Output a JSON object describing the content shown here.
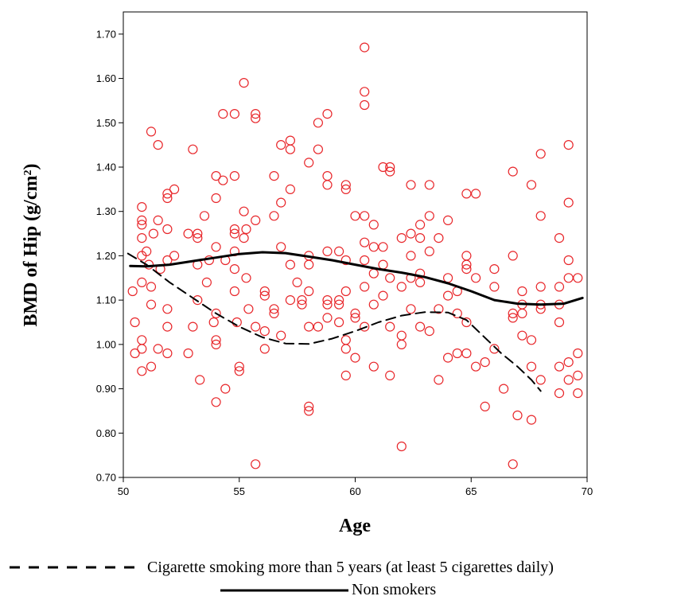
{
  "chart_data": {
    "type": "scatter",
    "xlabel": "Age",
    "ylabel_main": "BMD of Hip (g/cm",
    "ylabel_sup": "2",
    "ylabel_close": ")",
    "xlim": [
      50,
      70
    ],
    "ylim": [
      0.7,
      1.75
    ],
    "x_ticks": [
      50,
      55,
      60,
      65,
      70
    ],
    "x_tick_labels": [
      "50",
      "55",
      "60",
      "65",
      "70"
    ],
    "y_ticks": [
      0.7,
      0.8,
      0.9,
      1.0,
      1.1,
      1.2,
      1.3,
      1.4,
      1.5,
      1.6,
      1.7
    ],
    "y_tick_labels": [
      "0.70",
      "0.80",
      "0.90",
      "1.00",
      "1.10",
      "1.20",
      "1.30",
      "1.40",
      "1.50",
      "1.60",
      "1.70"
    ],
    "grid": false,
    "marker_color": "#e8262a",
    "line_color": "#000000",
    "points": [
      [
        50.4,
        1.12
      ],
      [
        50.5,
        1.05
      ],
      [
        50.5,
        0.98
      ],
      [
        50.8,
        1.31
      ],
      [
        50.8,
        1.28
      ],
      [
        50.8,
        1.27
      ],
      [
        50.8,
        1.24
      ],
      [
        50.8,
        1.2
      ],
      [
        50.8,
        1.14
      ],
      [
        50.8,
        1.01
      ],
      [
        50.8,
        0.99
      ],
      [
        50.8,
        0.94
      ],
      [
        51.0,
        1.21
      ],
      [
        51.1,
        1.18
      ],
      [
        51.2,
        1.48
      ],
      [
        51.2,
        1.13
      ],
      [
        51.2,
        1.09
      ],
      [
        51.2,
        0.95
      ],
      [
        51.3,
        1.25
      ],
      [
        51.5,
        1.45
      ],
      [
        51.5,
        1.28
      ],
      [
        51.5,
        0.99
      ],
      [
        51.6,
        1.17
      ],
      [
        51.9,
        1.34
      ],
      [
        51.9,
        1.33
      ],
      [
        51.9,
        1.26
      ],
      [
        51.9,
        1.19
      ],
      [
        51.9,
        1.08
      ],
      [
        51.9,
        1.04
      ],
      [
        51.9,
        0.98
      ],
      [
        52.2,
        1.35
      ],
      [
        52.2,
        1.2
      ],
      [
        52.8,
        1.25
      ],
      [
        52.8,
        0.98
      ],
      [
        53.0,
        1.44
      ],
      [
        53.0,
        1.04
      ],
      [
        53.2,
        1.25
      ],
      [
        53.2,
        1.24
      ],
      [
        53.2,
        1.18
      ],
      [
        53.2,
        1.1
      ],
      [
        53.3,
        0.92
      ],
      [
        53.5,
        1.29
      ],
      [
        53.6,
        1.14
      ],
      [
        53.7,
        1.19
      ],
      [
        53.9,
        1.05
      ],
      [
        54.0,
        1.38
      ],
      [
        54.0,
        1.33
      ],
      [
        54.0,
        1.22
      ],
      [
        54.0,
        1.07
      ],
      [
        54.0,
        1.01
      ],
      [
        54.0,
        1.0
      ],
      [
        54.0,
        0.87
      ],
      [
        54.3,
        1.52
      ],
      [
        54.3,
        1.37
      ],
      [
        54.4,
        1.19
      ],
      [
        54.4,
        0.9
      ],
      [
        54.8,
        1.52
      ],
      [
        54.8,
        1.38
      ],
      [
        54.8,
        1.26
      ],
      [
        54.8,
        1.25
      ],
      [
        54.8,
        1.21
      ],
      [
        54.8,
        1.17
      ],
      [
        54.8,
        1.12
      ],
      [
        54.9,
        1.05
      ],
      [
        55.0,
        0.95
      ],
      [
        55.0,
        0.94
      ],
      [
        55.2,
        1.59
      ],
      [
        55.2,
        1.3
      ],
      [
        55.2,
        1.24
      ],
      [
        55.3,
        1.26
      ],
      [
        55.3,
        1.15
      ],
      [
        55.4,
        1.08
      ],
      [
        55.7,
        1.52
      ],
      [
        55.7,
        1.51
      ],
      [
        55.7,
        1.28
      ],
      [
        55.7,
        1.04
      ],
      [
        55.7,
        0.73
      ],
      [
        56.1,
        1.12
      ],
      [
        56.1,
        1.11
      ],
      [
        56.1,
        1.03
      ],
      [
        56.1,
        0.99
      ],
      [
        56.5,
        1.38
      ],
      [
        56.5,
        1.29
      ],
      [
        56.5,
        1.08
      ],
      [
        56.5,
        1.07
      ],
      [
        56.8,
        1.45
      ],
      [
        56.8,
        1.32
      ],
      [
        56.8,
        1.22
      ],
      [
        56.8,
        1.02
      ],
      [
        57.2,
        1.46
      ],
      [
        57.2,
        1.44
      ],
      [
        57.2,
        1.35
      ],
      [
        57.2,
        1.18
      ],
      [
        57.2,
        1.1
      ],
      [
        57.5,
        1.14
      ],
      [
        57.7,
        1.1
      ],
      [
        57.7,
        1.09
      ],
      [
        58.0,
        1.41
      ],
      [
        58.0,
        1.2
      ],
      [
        58.0,
        1.18
      ],
      [
        58.0,
        1.12
      ],
      [
        58.0,
        1.04
      ],
      [
        58.0,
        0.86
      ],
      [
        58.0,
        0.85
      ],
      [
        58.4,
        1.5
      ],
      [
        58.4,
        1.44
      ],
      [
        58.4,
        1.04
      ],
      [
        58.8,
        1.52
      ],
      [
        58.8,
        1.38
      ],
      [
        58.8,
        1.36
      ],
      [
        58.8,
        1.21
      ],
      [
        58.8,
        1.1
      ],
      [
        58.8,
        1.09
      ],
      [
        58.8,
        1.06
      ],
      [
        59.3,
        1.21
      ],
      [
        59.3,
        1.1
      ],
      [
        59.3,
        1.09
      ],
      [
        59.3,
        1.05
      ],
      [
        59.6,
        1.36
      ],
      [
        59.6,
        1.35
      ],
      [
        59.6,
        1.19
      ],
      [
        59.6,
        1.12
      ],
      [
        59.6,
        1.01
      ],
      [
        59.6,
        0.99
      ],
      [
        59.6,
        0.93
      ],
      [
        60.0,
        1.29
      ],
      [
        60.0,
        1.07
      ],
      [
        60.0,
        1.06
      ],
      [
        60.0,
        0.97
      ],
      [
        60.4,
        1.67
      ],
      [
        60.4,
        1.57
      ],
      [
        60.4,
        1.54
      ],
      [
        60.4,
        1.29
      ],
      [
        60.4,
        1.23
      ],
      [
        60.4,
        1.19
      ],
      [
        60.4,
        1.13
      ],
      [
        60.4,
        1.04
      ],
      [
        60.8,
        1.27
      ],
      [
        60.8,
        1.22
      ],
      [
        60.8,
        1.16
      ],
      [
        60.8,
        1.09
      ],
      [
        60.8,
        0.95
      ],
      [
        61.2,
        1.4
      ],
      [
        61.2,
        1.22
      ],
      [
        61.2,
        1.18
      ],
      [
        61.2,
        1.11
      ],
      [
        61.5,
        1.4
      ],
      [
        61.5,
        1.39
      ],
      [
        61.5,
        1.15
      ],
      [
        61.5,
        1.04
      ],
      [
        61.5,
        0.93
      ],
      [
        62.0,
        1.24
      ],
      [
        62.0,
        1.13
      ],
      [
        62.0,
        1.02
      ],
      [
        62.0,
        1.0
      ],
      [
        62.0,
        0.77
      ],
      [
        62.4,
        1.36
      ],
      [
        62.4,
        1.25
      ],
      [
        62.4,
        1.2
      ],
      [
        62.4,
        1.15
      ],
      [
        62.4,
        1.08
      ],
      [
        62.8,
        1.27
      ],
      [
        62.8,
        1.24
      ],
      [
        62.8,
        1.16
      ],
      [
        62.8,
        1.14
      ],
      [
        62.8,
        1.04
      ],
      [
        63.2,
        1.36
      ],
      [
        63.2,
        1.29
      ],
      [
        63.2,
        1.21
      ],
      [
        63.2,
        1.03
      ],
      [
        63.6,
        1.24
      ],
      [
        63.6,
        1.08
      ],
      [
        63.6,
        0.92
      ],
      [
        64.0,
        1.28
      ],
      [
        64.0,
        1.15
      ],
      [
        64.0,
        1.11
      ],
      [
        64.0,
        0.97
      ],
      [
        64.4,
        1.12
      ],
      [
        64.4,
        1.07
      ],
      [
        64.4,
        0.98
      ],
      [
        64.8,
        1.34
      ],
      [
        64.8,
        1.2
      ],
      [
        64.8,
        1.18
      ],
      [
        64.8,
        1.17
      ],
      [
        64.8,
        1.05
      ],
      [
        64.8,
        0.98
      ],
      [
        65.2,
        1.34
      ],
      [
        65.2,
        1.15
      ],
      [
        65.2,
        0.95
      ],
      [
        65.6,
        0.96
      ],
      [
        65.6,
        0.86
      ],
      [
        66.0,
        1.17
      ],
      [
        66.0,
        1.13
      ],
      [
        66.0,
        0.99
      ],
      [
        66.4,
        0.9
      ],
      [
        66.8,
        1.39
      ],
      [
        66.8,
        1.2
      ],
      [
        66.8,
        1.07
      ],
      [
        66.8,
        1.06
      ],
      [
        66.8,
        0.73
      ],
      [
        67.0,
        0.84
      ],
      [
        67.2,
        1.12
      ],
      [
        67.2,
        1.09
      ],
      [
        67.2,
        1.07
      ],
      [
        67.2,
        1.02
      ],
      [
        67.6,
        1.36
      ],
      [
        67.6,
        1.01
      ],
      [
        67.6,
        0.95
      ],
      [
        67.6,
        0.83
      ],
      [
        68.0,
        1.43
      ],
      [
        68.0,
        1.29
      ],
      [
        68.0,
        1.13
      ],
      [
        68.0,
        1.09
      ],
      [
        68.0,
        1.08
      ],
      [
        68.0,
        0.92
      ],
      [
        68.8,
        1.24
      ],
      [
        68.8,
        1.13
      ],
      [
        68.8,
        1.09
      ],
      [
        68.8,
        1.05
      ],
      [
        68.8,
        0.95
      ],
      [
        68.8,
        0.89
      ],
      [
        69.2,
        1.45
      ],
      [
        69.2,
        1.32
      ],
      [
        69.2,
        1.19
      ],
      [
        69.2,
        1.15
      ],
      [
        69.2,
        0.96
      ],
      [
        69.2,
        0.92
      ],
      [
        69.6,
        1.15
      ],
      [
        69.6,
        0.98
      ],
      [
        69.6,
        0.93
      ],
      [
        69.6,
        0.89
      ]
    ],
    "series": [
      {
        "name": "Cigarette smoking more than 5 years (at least 5 cigarettes daily)",
        "style": "dashed",
        "x": [
          50.2,
          51,
          52,
          53,
          54,
          55,
          56,
          57,
          58,
          59,
          60,
          61,
          62,
          63,
          64,
          64.8,
          65.5,
          66.3,
          67,
          67.6,
          68
        ],
        "y": [
          1.205,
          1.18,
          1.14,
          1.105,
          1.07,
          1.04,
          1.016,
          1.002,
          1.001,
          1.013,
          1.03,
          1.05,
          1.065,
          1.073,
          1.072,
          1.055,
          1.02,
          0.98,
          0.95,
          0.92,
          0.895
        ]
      },
      {
        "name": "Non smokers",
        "style": "solid",
        "x": [
          50.3,
          51,
          52,
          53,
          54,
          55,
          56,
          57,
          58,
          59,
          60,
          61,
          62,
          63,
          64,
          65,
          66,
          67,
          68,
          69,
          69.8
        ],
        "y": [
          1.177,
          1.176,
          1.18,
          1.188,
          1.196,
          1.204,
          1.208,
          1.206,
          1.198,
          1.19,
          1.18,
          1.17,
          1.162,
          1.152,
          1.138,
          1.12,
          1.1,
          1.092,
          1.09,
          1.092,
          1.105
        ]
      }
    ]
  }
}
